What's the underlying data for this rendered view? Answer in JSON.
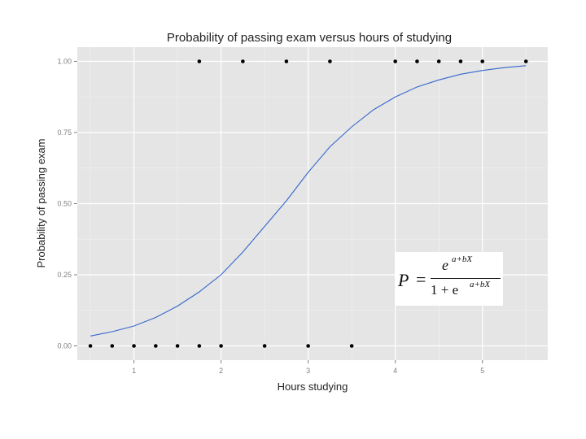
{
  "chart_data": {
    "type": "scatter",
    "title": "Probability of passing exam versus hours of studying",
    "xlabel": "Hours studying",
    "ylabel": "Probability of passing exam",
    "xlim": [
      0.35,
      5.75
    ],
    "ylim": [
      -0.05,
      1.05
    ],
    "x_ticks": [
      1,
      2,
      3,
      4,
      5
    ],
    "x_tick_labels": [
      "1",
      "2",
      "3",
      "4",
      "5"
    ],
    "y_ticks": [
      0,
      0.25,
      0.5,
      0.75,
      1
    ],
    "y_tick_labels": [
      "0.00",
      "0.25",
      "0.50",
      "0.75",
      "1.00"
    ],
    "grid": true,
    "background": "#e5e5e5",
    "curve_color": "#3366cc",
    "point_color": "#000000",
    "series": [
      {
        "type": "scatter",
        "points": [
          {
            "x": 0.5,
            "y": 0
          },
          {
            "x": 0.75,
            "y": 0
          },
          {
            "x": 1.0,
            "y": 0
          },
          {
            "x": 1.25,
            "y": 0
          },
          {
            "x": 1.5,
            "y": 0
          },
          {
            "x": 1.75,
            "y": 0
          },
          {
            "x": 1.75,
            "y": 1
          },
          {
            "x": 2.0,
            "y": 0
          },
          {
            "x": 2.25,
            "y": 1
          },
          {
            "x": 2.5,
            "y": 0
          },
          {
            "x": 2.75,
            "y": 1
          },
          {
            "x": 3.0,
            "y": 0
          },
          {
            "x": 3.25,
            "y": 1
          },
          {
            "x": 3.5,
            "y": 0
          },
          {
            "x": 4.0,
            "y": 1
          },
          {
            "x": 4.25,
            "y": 1
          },
          {
            "x": 4.5,
            "y": 1
          },
          {
            "x": 4.75,
            "y": 1
          },
          {
            "x": 5.0,
            "y": 1
          },
          {
            "x": 5.5,
            "y": 1
          }
        ]
      },
      {
        "type": "line",
        "points": [
          {
            "x": 0.5,
            "y": 0.035
          },
          {
            "x": 0.75,
            "y": 0.05
          },
          {
            "x": 1.0,
            "y": 0.07
          },
          {
            "x": 1.25,
            "y": 0.1
          },
          {
            "x": 1.5,
            "y": 0.14
          },
          {
            "x": 1.75,
            "y": 0.19
          },
          {
            "x": 2.0,
            "y": 0.25
          },
          {
            "x": 2.25,
            "y": 0.33
          },
          {
            "x": 2.5,
            "y": 0.42
          },
          {
            "x": 2.75,
            "y": 0.51
          },
          {
            "x": 3.0,
            "y": 0.61
          },
          {
            "x": 3.25,
            "y": 0.7
          },
          {
            "x": 3.5,
            "y": 0.77
          },
          {
            "x": 3.75,
            "y": 0.83
          },
          {
            "x": 4.0,
            "y": 0.875
          },
          {
            "x": 4.25,
            "y": 0.91
          },
          {
            "x": 4.5,
            "y": 0.935
          },
          {
            "x": 4.75,
            "y": 0.955
          },
          {
            "x": 5.0,
            "y": 0.968
          },
          {
            "x": 5.25,
            "y": 0.978
          },
          {
            "x": 5.5,
            "y": 0.985
          }
        ]
      }
    ]
  },
  "formula": {
    "lhs": "P",
    "equals": "=",
    "numerator": "e",
    "numerator_exp": "a+bX",
    "denominator": "1 + e",
    "denominator_exp": "a+bX"
  }
}
